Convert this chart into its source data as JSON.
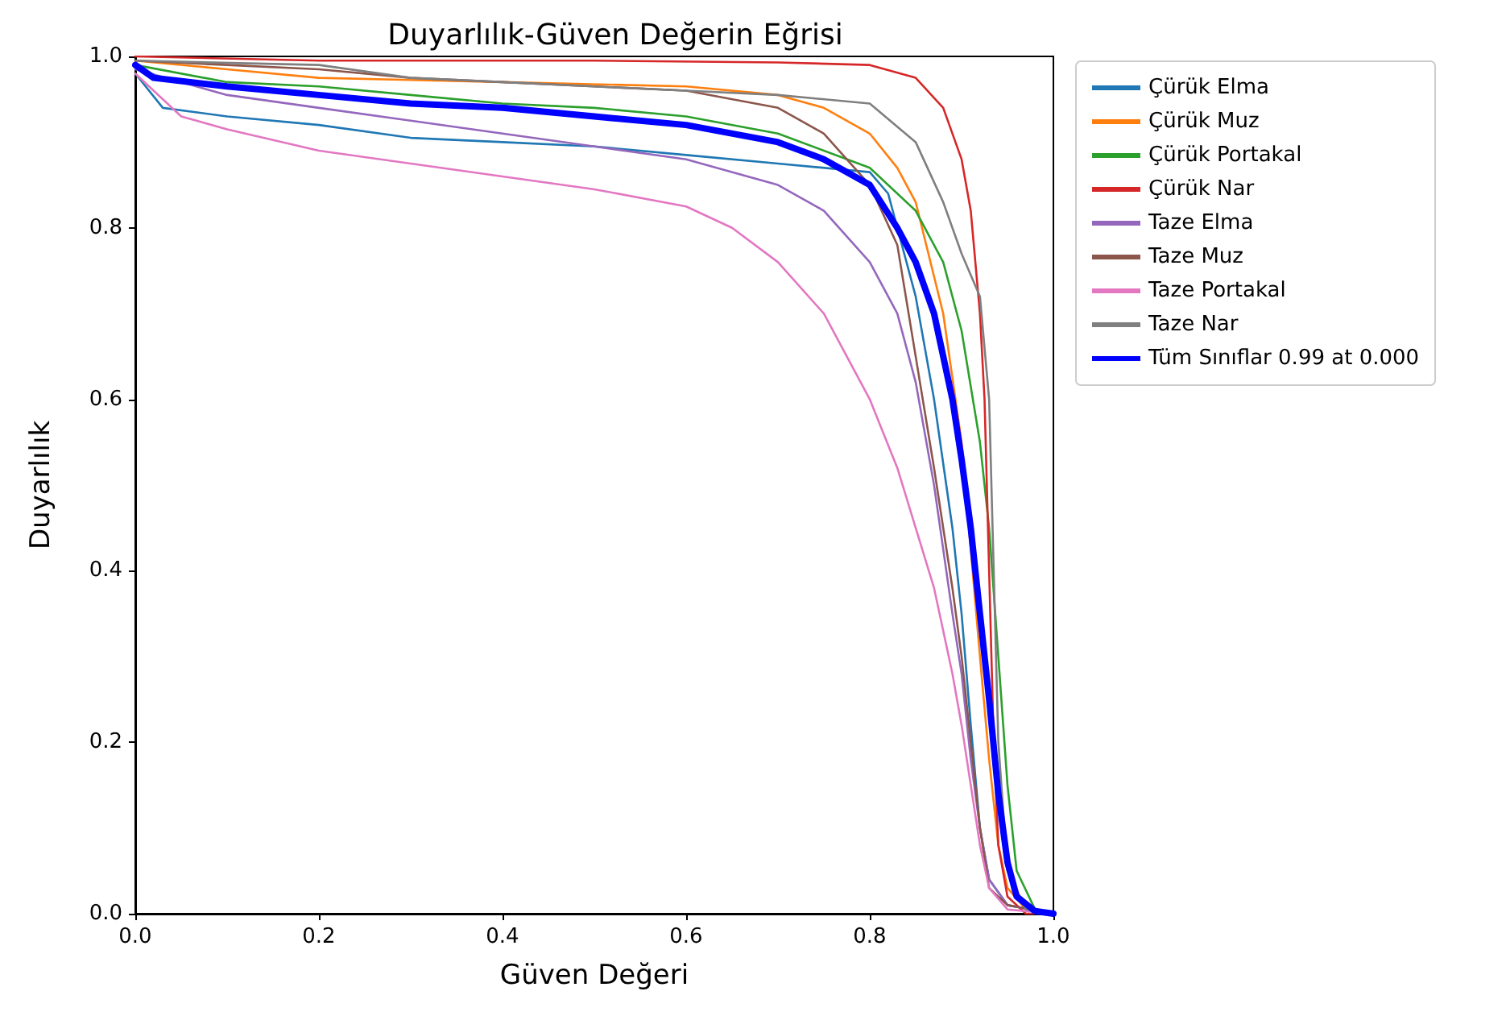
{
  "chart_data": {
    "type": "line",
    "title": "Duyarlılık-Güven Değerin Eğrisi",
    "xlabel": "Güven Değeri",
    "ylabel": "Duyarlılık",
    "xlim": [
      0,
      1
    ],
    "ylim": [
      0,
      1
    ],
    "xticks": [
      {
        "value": 0,
        "label": "0.0"
      },
      {
        "value": 0.2,
        "label": "0.2"
      },
      {
        "value": 0.4,
        "label": "0.4"
      },
      {
        "value": 0.6,
        "label": "0.6"
      },
      {
        "value": 0.8,
        "label": "0.8"
      },
      {
        "value": 1,
        "label": "1.0"
      }
    ],
    "yticks": [
      {
        "value": 0,
        "label": "0.0"
      },
      {
        "value": 0.2,
        "label": "0.2"
      },
      {
        "value": 0.4,
        "label": "0.4"
      },
      {
        "value": 0.6,
        "label": "0.6"
      },
      {
        "value": 0.8,
        "label": "0.8"
      },
      {
        "value": 1,
        "label": "1.0"
      }
    ],
    "legend": "right",
    "marker": "none",
    "line_style": "solid",
    "series": [
      {
        "name": "Çürük Elma",
        "color": "#1f77b4",
        "x": [
          0,
          0.03,
          0.1,
          0.2,
          0.3,
          0.4,
          0.5,
          0.6,
          0.7,
          0.8,
          0.82,
          0.85,
          0.87,
          0.89,
          0.9,
          0.91,
          0.92,
          0.93,
          0.95,
          1
        ],
        "values": [
          0.98,
          0.94,
          0.93,
          0.92,
          0.905,
          0.9,
          0.895,
          0.885,
          0.875,
          0.865,
          0.84,
          0.72,
          0.6,
          0.45,
          0.35,
          0.22,
          0.1,
          0.04,
          0.01,
          0
        ]
      },
      {
        "name": "Çürük Muz",
        "color": "#ff7f0e",
        "x": [
          0,
          0.1,
          0.2,
          0.4,
          0.6,
          0.7,
          0.75,
          0.8,
          0.83,
          0.85,
          0.88,
          0.9,
          0.92,
          0.93,
          0.94,
          0.95,
          0.97,
          1
        ],
        "values": [
          0.995,
          0.985,
          0.975,
          0.97,
          0.965,
          0.955,
          0.94,
          0.91,
          0.87,
          0.83,
          0.7,
          0.55,
          0.3,
          0.18,
          0.08,
          0.03,
          0.005,
          0
        ]
      },
      {
        "name": "Çürük Portakal",
        "color": "#2ca02c",
        "x": [
          0,
          0.1,
          0.2,
          0.3,
          0.4,
          0.5,
          0.6,
          0.7,
          0.8,
          0.85,
          0.88,
          0.9,
          0.92,
          0.93,
          0.94,
          0.95,
          0.96,
          0.98,
          1
        ],
        "values": [
          0.99,
          0.97,
          0.965,
          0.955,
          0.945,
          0.94,
          0.93,
          0.91,
          0.87,
          0.82,
          0.76,
          0.68,
          0.55,
          0.45,
          0.3,
          0.15,
          0.05,
          0.005,
          0
        ]
      },
      {
        "name": "Çürük Nar",
        "color": "#d62728",
        "x": [
          0,
          0.2,
          0.5,
          0.7,
          0.8,
          0.85,
          0.88,
          0.9,
          0.91,
          0.92,
          0.925,
          0.93,
          0.935,
          0.94,
          0.95,
          0.97,
          1
        ],
        "values": [
          1,
          0.995,
          0.995,
          0.993,
          0.99,
          0.975,
          0.94,
          0.88,
          0.82,
          0.7,
          0.6,
          0.4,
          0.2,
          0.08,
          0.02,
          0,
          0
        ]
      },
      {
        "name": "Taze Elma",
        "color": "#9467bd",
        "x": [
          0,
          0.1,
          0.2,
          0.3,
          0.4,
          0.5,
          0.6,
          0.7,
          0.75,
          0.8,
          0.83,
          0.85,
          0.87,
          0.89,
          0.9,
          0.91,
          0.92,
          0.93,
          0.95,
          1
        ],
        "values": [
          0.985,
          0.955,
          0.94,
          0.925,
          0.91,
          0.895,
          0.88,
          0.85,
          0.82,
          0.76,
          0.7,
          0.62,
          0.5,
          0.35,
          0.28,
          0.18,
          0.1,
          0.04,
          0.01,
          0
        ]
      },
      {
        "name": "Taze Muz",
        "color": "#8c564b",
        "x": [
          0,
          0.1,
          0.2,
          0.3,
          0.4,
          0.5,
          0.6,
          0.7,
          0.75,
          0.8,
          0.83,
          0.85,
          0.87,
          0.89,
          0.9,
          0.91,
          0.92,
          0.93,
          0.95,
          1
        ],
        "values": [
          0.995,
          0.99,
          0.985,
          0.975,
          0.97,
          0.965,
          0.96,
          0.94,
          0.91,
          0.85,
          0.78,
          0.65,
          0.52,
          0.38,
          0.3,
          0.2,
          0.1,
          0.03,
          0.01,
          0
        ]
      },
      {
        "name": "Taze Portakal",
        "color": "#e377c2",
        "x": [
          0,
          0.05,
          0.1,
          0.2,
          0.3,
          0.4,
          0.5,
          0.6,
          0.65,
          0.7,
          0.75,
          0.8,
          0.83,
          0.85,
          0.87,
          0.89,
          0.9,
          0.91,
          0.92,
          0.93,
          0.95,
          1
        ],
        "values": [
          0.98,
          0.93,
          0.915,
          0.89,
          0.875,
          0.86,
          0.845,
          0.825,
          0.8,
          0.76,
          0.7,
          0.6,
          0.52,
          0.45,
          0.38,
          0.28,
          0.22,
          0.15,
          0.08,
          0.03,
          0.005,
          0
        ]
      },
      {
        "name": "Taze Nar",
        "color": "#7f7f7f",
        "x": [
          0,
          0.2,
          0.3,
          0.4,
          0.5,
          0.6,
          0.7,
          0.8,
          0.85,
          0.88,
          0.9,
          0.92,
          0.93,
          0.935,
          0.94,
          0.95,
          0.97,
          1
        ],
        "values": [
          0.995,
          0.99,
          0.975,
          0.97,
          0.965,
          0.96,
          0.955,
          0.945,
          0.9,
          0.83,
          0.77,
          0.72,
          0.6,
          0.4,
          0.2,
          0.05,
          0.005,
          0
        ]
      },
      {
        "name": "Tüm Sınıflar 0.99 at 0.000",
        "color": "#0000ff",
        "x": [
          0,
          0.02,
          0.1,
          0.2,
          0.3,
          0.4,
          0.5,
          0.6,
          0.7,
          0.75,
          0.8,
          0.83,
          0.85,
          0.87,
          0.89,
          0.9,
          0.91,
          0.92,
          0.93,
          0.94,
          0.95,
          0.96,
          0.98,
          1
        ],
        "values": [
          0.99,
          0.975,
          0.965,
          0.955,
          0.945,
          0.94,
          0.93,
          0.92,
          0.9,
          0.88,
          0.85,
          0.8,
          0.76,
          0.7,
          0.6,
          0.53,
          0.45,
          0.35,
          0.25,
          0.14,
          0.06,
          0.02,
          0.003,
          0
        ]
      }
    ]
  }
}
